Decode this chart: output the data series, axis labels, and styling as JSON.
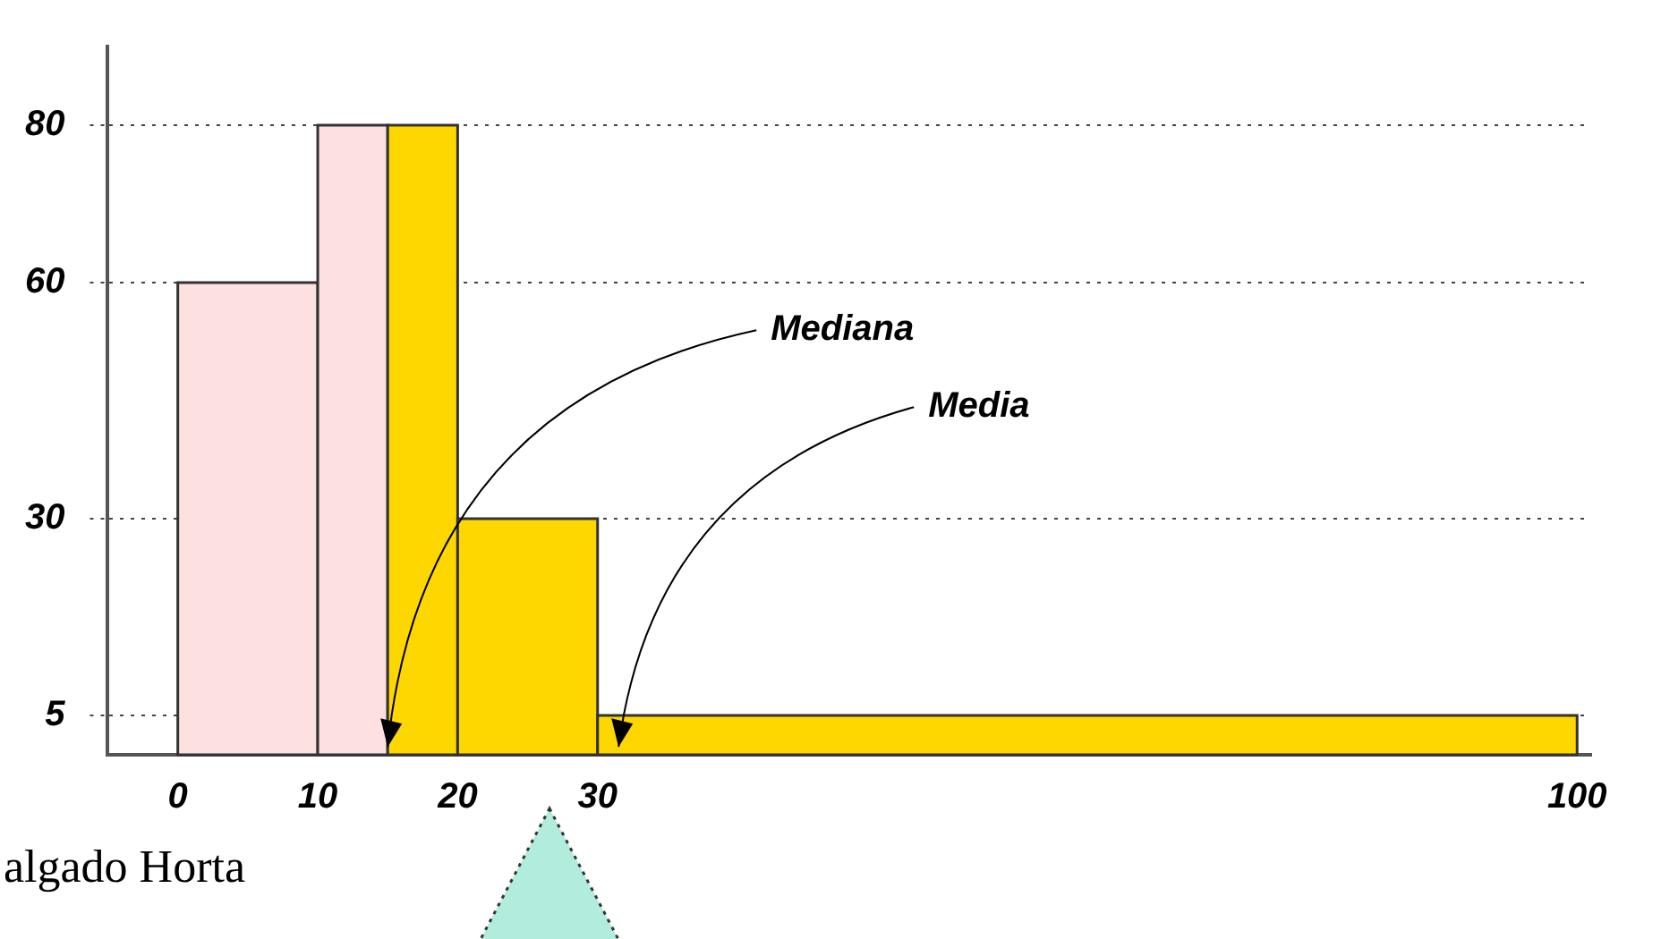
{
  "chart_data": {
    "type": "histogram",
    "bins": [
      0,
      10,
      15,
      20,
      30,
      100
    ],
    "values": [
      60,
      80,
      80,
      30,
      5
    ],
    "colors": [
      "#fde0e0",
      "#fde0e0",
      "#ffd700",
      "#ffd700",
      "#ffd700"
    ],
    "xlim": [
      -5,
      101
    ],
    "xticks": [
      0,
      10,
      20,
      30,
      100
    ],
    "ylim": [
      0,
      90
    ],
    "yticks": [
      5,
      30,
      60,
      80
    ],
    "grid": "y",
    "annotations": [
      {
        "text": "Mediana",
        "x": 15,
        "y": 1
      },
      {
        "text": "Media",
        "x": 31.5,
        "y": 1
      },
      "algado Horta"
    ]
  }
}
